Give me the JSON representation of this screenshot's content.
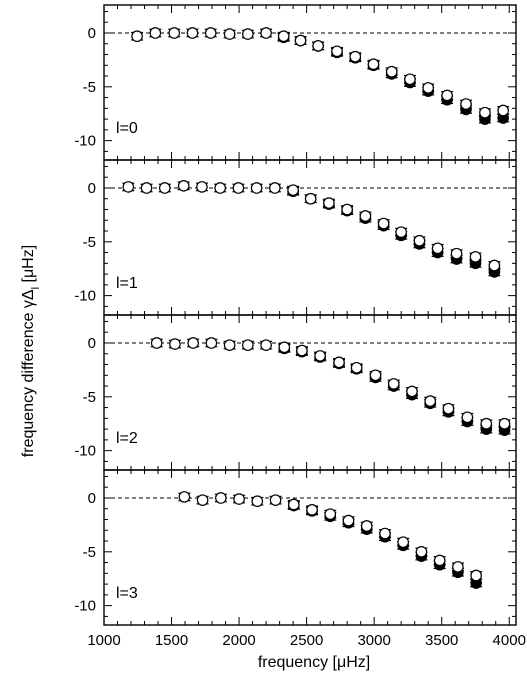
{
  "chart_data": {
    "type": "scatter",
    "xlabel": "frequency [μHz]",
    "ylabel_parts": [
      "frequency difference ",
      "γΔ",
      "l",
      " [μHz]"
    ],
    "xlim": [
      1000,
      4050
    ],
    "xticks": [
      1000,
      1500,
      2000,
      2500,
      3000,
      3500,
      4000
    ],
    "ylim": [
      -11.8,
      2.6
    ],
    "yticks": [
      0,
      -5,
      -10
    ],
    "reference_line": 0,
    "colors": {
      "open_marker": "#ffffff",
      "filled_marker": "#000000",
      "axes": "#000000"
    },
    "panels": [
      {
        "label": "l=0",
        "x": [
          1245,
          1380,
          1520,
          1655,
          1790,
          1930,
          2065,
          2200,
          2330,
          2455,
          2585,
          2725,
          2860,
          2995,
          3130,
          3265,
          3400,
          3540,
          3680,
          3820,
          3955
        ],
        "open": [
          -0.3,
          0.0,
          0.0,
          0.0,
          0.0,
          -0.1,
          -0.1,
          0.0,
          -0.3,
          -0.7,
          -1.2,
          -1.7,
          -2.2,
          -2.9,
          -3.6,
          -4.3,
          -5.1,
          -5.8,
          -6.6,
          -7.4,
          -7.2
        ],
        "filled": [
          null,
          null,
          null,
          null,
          null,
          null,
          null,
          null,
          -0.4,
          -0.7,
          -1.2,
          -1.8,
          -2.3,
          -3.0,
          -3.8,
          -4.6,
          -5.4,
          -6.2,
          -7.1,
          -8.0,
          -7.9
        ],
        "err": 0.35
      },
      {
        "label": "l=1",
        "x": [
          1180,
          1315,
          1450,
          1590,
          1725,
          1860,
          1995,
          2130,
          2265,
          2400,
          2530,
          2665,
          2800,
          2935,
          3070,
          3200,
          3335,
          3470,
          3610,
          3750,
          3890
        ],
        "open": [
          0.1,
          0.0,
          0.0,
          0.2,
          0.1,
          0.0,
          0.0,
          0.0,
          0.0,
          -0.2,
          -1.0,
          -1.4,
          -2.0,
          -2.6,
          -3.3,
          -4.1,
          -4.9,
          -5.6,
          -6.1,
          -6.4,
          -7.2
        ],
        "filled": [
          null,
          null,
          null,
          null,
          null,
          null,
          null,
          null,
          null,
          -0.3,
          -1.0,
          -1.5,
          -2.1,
          -2.8,
          -3.5,
          -4.4,
          -5.2,
          -6.0,
          -6.6,
          -7.0,
          -7.8
        ],
        "err": 0.35
      },
      {
        "label": "l=2",
        "x": [
          1390,
          1525,
          1660,
          1795,
          1930,
          2065,
          2200,
          2335,
          2465,
          2600,
          2740,
          2870,
          3010,
          3145,
          3280,
          3415,
          3550,
          3690,
          3830,
          3965
        ],
        "open": [
          0.0,
          -0.1,
          0.0,
          0.0,
          -0.2,
          -0.2,
          -0.2,
          -0.4,
          -0.7,
          -1.2,
          -1.8,
          -2.3,
          -3.0,
          -3.8,
          -4.5,
          -5.4,
          -6.1,
          -6.9,
          -7.5,
          -7.5
        ],
        "filled": [
          null,
          null,
          null,
          null,
          null,
          null,
          null,
          -0.5,
          -0.8,
          -1.3,
          -1.9,
          -2.4,
          -3.2,
          -4.0,
          -4.8,
          -5.6,
          -6.4,
          -7.3,
          -8.0,
          -8.1
        ],
        "err": 0.35
      },
      {
        "label": "l=3",
        "x": [
          1595,
          1730,
          1865,
          2000,
          2135,
          2270,
          2405,
          2540,
          2675,
          2810,
          2945,
          3080,
          3215,
          3350,
          3485,
          3620,
          3755
        ],
        "open": [
          0.1,
          -0.2,
          0.0,
          -0.1,
          -0.3,
          -0.2,
          -0.6,
          -1.1,
          -1.5,
          -2.1,
          -2.6,
          -3.3,
          -4.1,
          -5.0,
          -5.8,
          -6.4,
          -7.2
        ],
        "filled": [
          null,
          null,
          null,
          null,
          null,
          null,
          -0.7,
          -1.2,
          -1.7,
          -2.3,
          -2.9,
          -3.6,
          -4.4,
          -5.4,
          -6.2,
          -6.9,
          -7.9
        ],
        "err": 0.35
      }
    ]
  }
}
